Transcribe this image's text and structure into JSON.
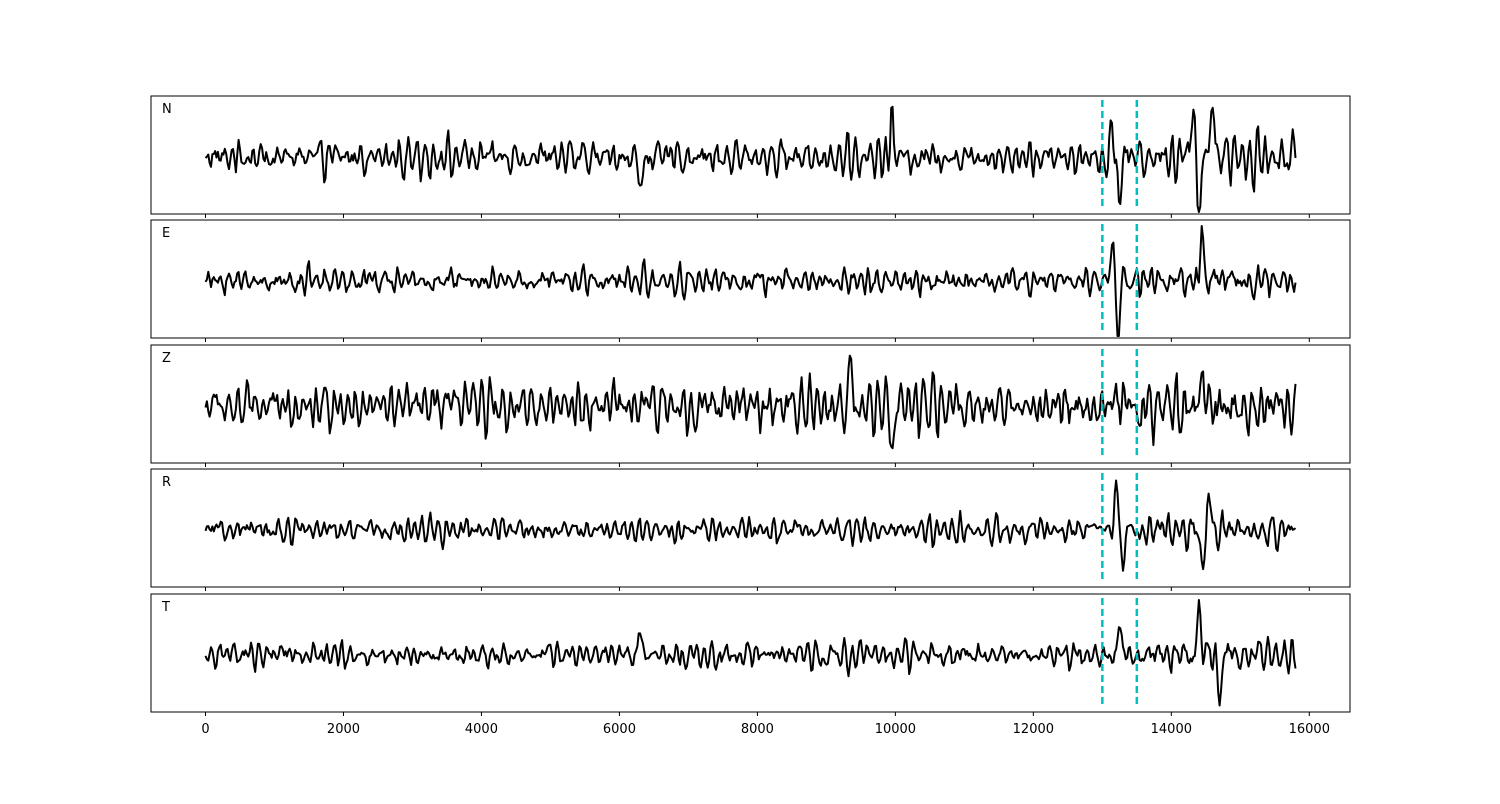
{
  "chart_data": {
    "type": "line",
    "title": "",
    "xlabel": "",
    "ylabel": "",
    "xlim": [
      -790,
      16590
    ],
    "x_range": [
      0,
      15800
    ],
    "xticks": [
      0,
      2000,
      4000,
      6000,
      8000,
      10000,
      12000,
      14000,
      16000
    ],
    "xtick_labels": [
      "0",
      "2000",
      "4000",
      "6000",
      "8000",
      "10000",
      "12000",
      "14000",
      "16000"
    ],
    "y_ticks_shown": false,
    "grid": false,
    "line_color": "#000000",
    "marker_color": "#00BFBF",
    "markers": [
      13000,
      13500
    ],
    "series": [
      {
        "name": "N",
        "notable_peaks": [
          [
            6300,
            -0.7
          ],
          [
            9950,
            0.7
          ],
          [
            13150,
            0.55
          ],
          [
            13250,
            -0.85
          ],
          [
            14300,
            0.85
          ],
          [
            14400,
            -0.9
          ],
          [
            14600,
            0.95
          ]
        ]
      },
      {
        "name": "E",
        "notable_peaks": [
          [
            13150,
            0.7
          ],
          [
            13220,
            -0.9
          ],
          [
            14450,
            0.8
          ]
        ]
      },
      {
        "name": "Z",
        "notable_peaks": [
          [
            9350,
            0.9
          ],
          [
            9950,
            -0.8
          ],
          [
            14450,
            0.7
          ]
        ]
      },
      {
        "name": "R",
        "notable_peaks": [
          [
            13200,
            0.9
          ],
          [
            13300,
            -0.7
          ],
          [
            14450,
            -0.7
          ],
          [
            14550,
            0.5
          ]
        ]
      },
      {
        "name": "T",
        "notable_peaks": [
          [
            6300,
            0.55
          ],
          [
            13250,
            0.55
          ],
          [
            14400,
            0.9
          ],
          [
            14700,
            -0.8
          ]
        ]
      }
    ]
  }
}
